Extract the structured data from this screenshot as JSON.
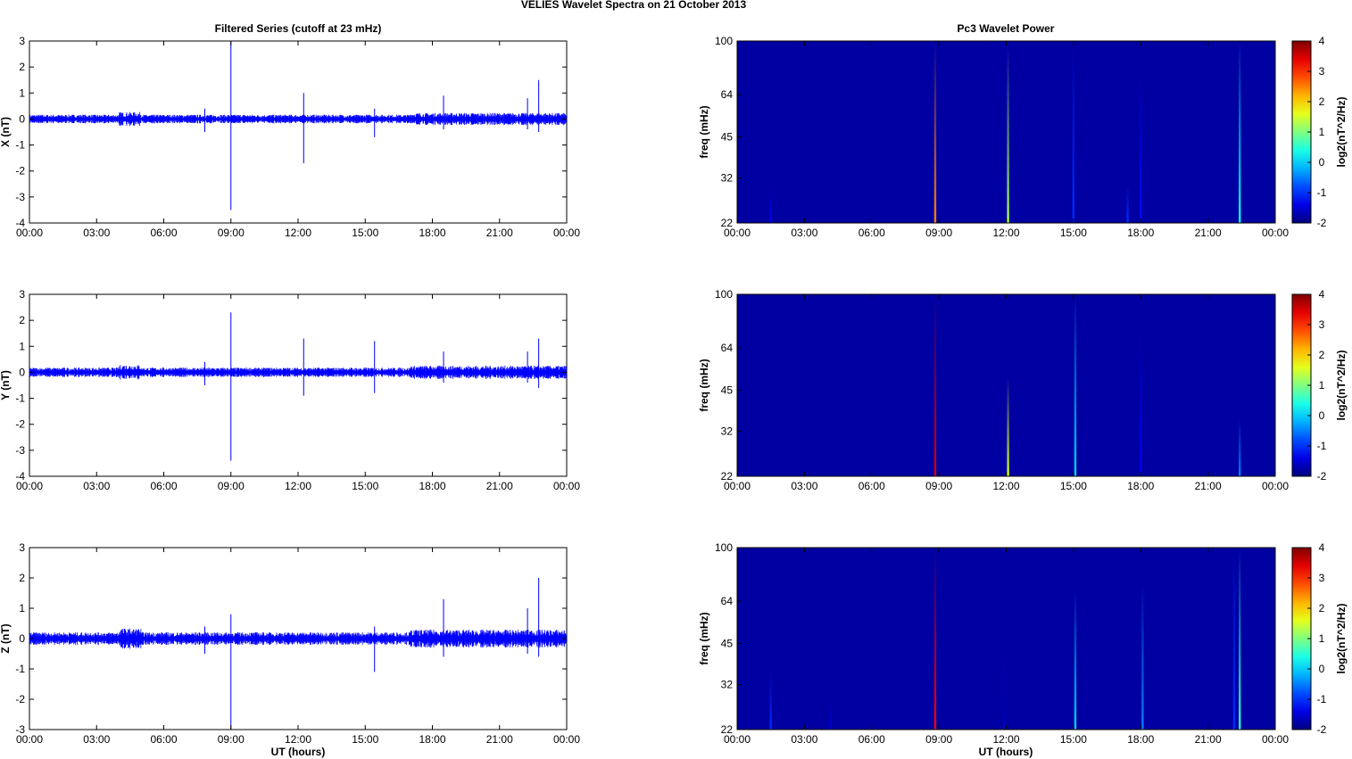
{
  "figure": {
    "title": "VELIES Wavelet Spectra on 21 October   2013",
    "left_title": "Filtered Series (cutoff at 23 mHz)",
    "right_title": "Pc3 Wavelet Power",
    "x_axis_label": "UT (hours)"
  },
  "colors": {
    "trace": "#0000ff",
    "spectrogram_background": "#00008f",
    "axis": "#000000"
  },
  "chart_data": [
    {
      "type": "line",
      "component": "X",
      "ylabel": "X (nT)",
      "xlim": [
        "00:00",
        "00:00"
      ],
      "x_ticks": [
        "00:00",
        "03:00",
        "06:00",
        "09:00",
        "12:00",
        "15:00",
        "18:00",
        "21:00",
        "00:00"
      ],
      "ylim": [
        -4,
        3
      ],
      "y_ticks": [
        "3",
        "2",
        "1",
        "0",
        "-1",
        "-2",
        "-3",
        "-4"
      ],
      "baseline": 0,
      "noise_amplitude": 0.12,
      "events": [
        {
          "t": "09:00",
          "max": 3.0,
          "min": -3.5
        },
        {
          "t": "12:15",
          "max": 1.0,
          "min": -1.7
        },
        {
          "t": "15:25",
          "max": 0.4,
          "min": -0.7
        },
        {
          "t": "07:50",
          "max": 0.4,
          "min": -0.5
        },
        {
          "t": "18:30",
          "max": 0.9,
          "min": -0.4
        },
        {
          "t": "22:15",
          "max": 0.8,
          "min": -0.4
        },
        {
          "t": "22:45",
          "max": 1.5,
          "min": -0.5
        }
      ],
      "legend": "none",
      "grid": false
    },
    {
      "type": "line",
      "component": "Y",
      "ylabel": "Y (nT)",
      "xlim": [
        "00:00",
        "00:00"
      ],
      "x_ticks": [
        "00:00",
        "03:00",
        "06:00",
        "09:00",
        "12:00",
        "15:00",
        "18:00",
        "21:00",
        "00:00"
      ],
      "ylim": [
        -4,
        3
      ],
      "y_ticks": [
        "3",
        "2",
        "1",
        "0",
        "-1",
        "-2",
        "-3",
        "-4"
      ],
      "baseline": 0,
      "noise_amplitude": 0.13,
      "events": [
        {
          "t": "09:00",
          "max": 2.3,
          "min": -3.4
        },
        {
          "t": "12:15",
          "max": 1.3,
          "min": -0.9
        },
        {
          "t": "15:25",
          "max": 1.2,
          "min": -0.8
        },
        {
          "t": "07:50",
          "max": 0.4,
          "min": -0.5
        },
        {
          "t": "18:30",
          "max": 0.8,
          "min": -0.4
        },
        {
          "t": "22:15",
          "max": 0.8,
          "min": -0.4
        },
        {
          "t": "22:45",
          "max": 1.3,
          "min": -0.6
        }
      ],
      "legend": "none",
      "grid": false
    },
    {
      "type": "line",
      "component": "Z",
      "ylabel": "Z (nT)",
      "xlim": [
        "00:00",
        "00:00"
      ],
      "x_ticks": [
        "00:00",
        "03:00",
        "06:00",
        "09:00",
        "12:00",
        "15:00",
        "18:00",
        "21:00",
        "00:00"
      ],
      "ylim": [
        -3,
        3
      ],
      "y_ticks": [
        "3",
        "2",
        "1",
        "0",
        "-1",
        "-2",
        "-3"
      ],
      "baseline": 0,
      "noise_amplitude": 0.15,
      "events": [
        {
          "t": "09:00",
          "max": 0.8,
          "min": -3.0
        },
        {
          "t": "07:50",
          "max": 0.4,
          "min": -0.5
        },
        {
          "t": "15:25",
          "max": 0.4,
          "min": -1.1
        },
        {
          "t": "18:30",
          "max": 1.3,
          "min": -0.6
        },
        {
          "t": "22:15",
          "max": 1.0,
          "min": -0.5
        },
        {
          "t": "22:45",
          "max": 2.0,
          "min": -0.6
        }
      ],
      "legend": "none",
      "grid": false
    },
    {
      "type": "heatmap",
      "ylabel": "freq (mHz)",
      "y_ticks": [
        "100",
        "64",
        "45",
        "32",
        "22"
      ],
      "ylim_mHz": [
        22,
        100
      ],
      "y_scale": "log",
      "x_ticks": [
        "00:00",
        "03:00",
        "06:00",
        "09:00",
        "12:00",
        "15:00",
        "18:00",
        "21:00",
        "00:00"
      ],
      "colorbar_label": "log2(nT^2/Hz)",
      "colorbar_ticks": [
        "4",
        "3",
        "2",
        "1",
        "0",
        "-1",
        "-2"
      ],
      "clim": [
        -2,
        4
      ],
      "background_level": -1.8,
      "bursts": [
        {
          "t": "08:50",
          "f_top_mHz": 100,
          "peak": 2.5
        },
        {
          "t": "12:05",
          "f_top_mHz": 95,
          "peak": 1.2
        },
        {
          "t": "15:00",
          "f_top_mHz": 95,
          "peak": -1.0
        },
        {
          "t": "17:25",
          "f_top_mHz": 30,
          "peak": -1.0
        },
        {
          "t": "18:00",
          "f_top_mHz": 75,
          "peak": -1.2
        },
        {
          "t": "22:25",
          "f_top_mHz": 100,
          "peak": 0.3
        },
        {
          "t": "01:30",
          "f_top_mHz": 30,
          "peak": -1.3
        }
      ]
    },
    {
      "type": "heatmap",
      "ylabel": "freq (mHz)",
      "y_ticks": [
        "100",
        "64",
        "45",
        "32",
        "22"
      ],
      "ylim_mHz": [
        22,
        100
      ],
      "y_scale": "log",
      "x_ticks": [
        "00:00",
        "03:00",
        "06:00",
        "09:00",
        "12:00",
        "15:00",
        "18:00",
        "21:00",
        "00:00"
      ],
      "colorbar_label": "log2(nT^2/Hz)",
      "colorbar_ticks": [
        "4",
        "3",
        "2",
        "1",
        "0",
        "-1",
        "-2"
      ],
      "clim": [
        -2,
        4
      ],
      "background_level": -1.8,
      "bursts": [
        {
          "t": "08:50",
          "f_top_mHz": 100,
          "peak": 3.5
        },
        {
          "t": "12:05",
          "f_top_mHz": 50,
          "peak": 1.5
        },
        {
          "t": "15:05",
          "f_top_mHz": 100,
          "peak": 0.0
        },
        {
          "t": "22:25",
          "f_top_mHz": 35,
          "peak": -0.5
        },
        {
          "t": "18:00",
          "f_top_mHz": 70,
          "peak": -1.3
        }
      ]
    },
    {
      "type": "heatmap",
      "ylabel": "freq (mHz)",
      "y_ticks": [
        "100",
        "64",
        "45",
        "32",
        "22"
      ],
      "ylim_mHz": [
        22,
        100
      ],
      "y_scale": "log",
      "x_ticks": [
        "00:00",
        "03:00",
        "06:00",
        "09:00",
        "12:00",
        "15:00",
        "18:00",
        "21:00",
        "00:00"
      ],
      "colorbar_label": "log2(nT^2/Hz)",
      "colorbar_ticks": [
        "4",
        "3",
        "2",
        "1",
        "0",
        "-1",
        "-2"
      ],
      "clim": [
        -2,
        4
      ],
      "background_level": -1.8,
      "bursts": [
        {
          "t": "08:50",
          "f_top_mHz": 100,
          "peak": 3.3
        },
        {
          "t": "15:05",
          "f_top_mHz": 70,
          "peak": 0.0
        },
        {
          "t": "18:05",
          "f_top_mHz": 75,
          "peak": -0.5
        },
        {
          "t": "22:10",
          "f_top_mHz": 100,
          "peak": -1.0
        },
        {
          "t": "22:25",
          "f_top_mHz": 100,
          "peak": 0.5
        },
        {
          "t": "01:30",
          "f_top_mHz": 35,
          "peak": -1.0
        },
        {
          "t": "04:10",
          "f_top_mHz": 28,
          "peak": -1.5
        },
        {
          "t": "11:55",
          "f_top_mHz": 40,
          "peak": -1.6
        }
      ]
    }
  ]
}
